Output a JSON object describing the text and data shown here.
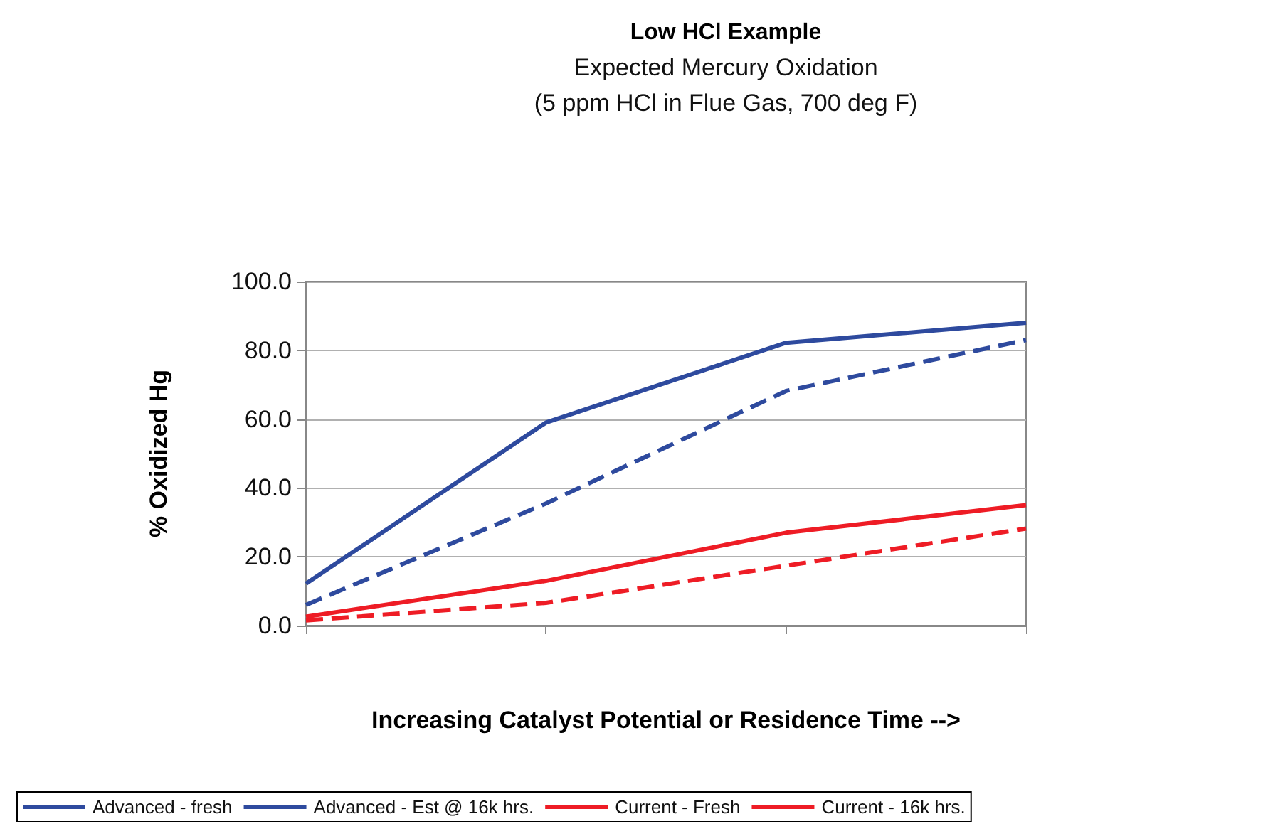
{
  "chart_data": {
    "type": "line",
    "title": "Low HCl Example",
    "subtitle": "Expected Mercury Oxidation\n(5 ppm HCl in Flue Gas, 700 deg F)",
    "xlabel": "Increasing Catalyst Potential or Residence Time -->",
    "ylabel": "% Oxidized Hg",
    "categories": [
      null,
      null,
      null,
      null
    ],
    "series": [
      {
        "name": "Advanced - fresh",
        "color": "#2e4a9e",
        "line_style": "solid",
        "values": [
          12.2,
          59,
          82.2,
          88
        ]
      },
      {
        "name": "Advanced - Est @ 16k hrs.",
        "color": "#2e4a9e",
        "line_style": "dashed",
        "values": [
          6,
          35.5,
          68.2,
          83
        ]
      },
      {
        "name": "Current - Fresh",
        "color": "#ee1c25",
        "line_style": "solid",
        "values": [
          2.6,
          13,
          27,
          35
        ]
      },
      {
        "name": "Current - 16k hrs.",
        "color": "#ee1c25",
        "line_style": "dashed",
        "values": [
          1.5,
          6.6,
          17.4,
          28.2
        ]
      }
    ],
    "ylim": [
      0,
      100
    ],
    "yticks": [
      {
        "value": 0,
        "label": "0.0"
      },
      {
        "value": 20,
        "label": "20.0"
      },
      {
        "value": 40,
        "label": "40.0"
      },
      {
        "value": 60,
        "label": "60.0"
      },
      {
        "value": 80,
        "label": "80.0"
      },
      {
        "value": 100,
        "label": "100.0"
      }
    ],
    "grid": "y",
    "legend": "bottom left",
    "marker": "none"
  }
}
